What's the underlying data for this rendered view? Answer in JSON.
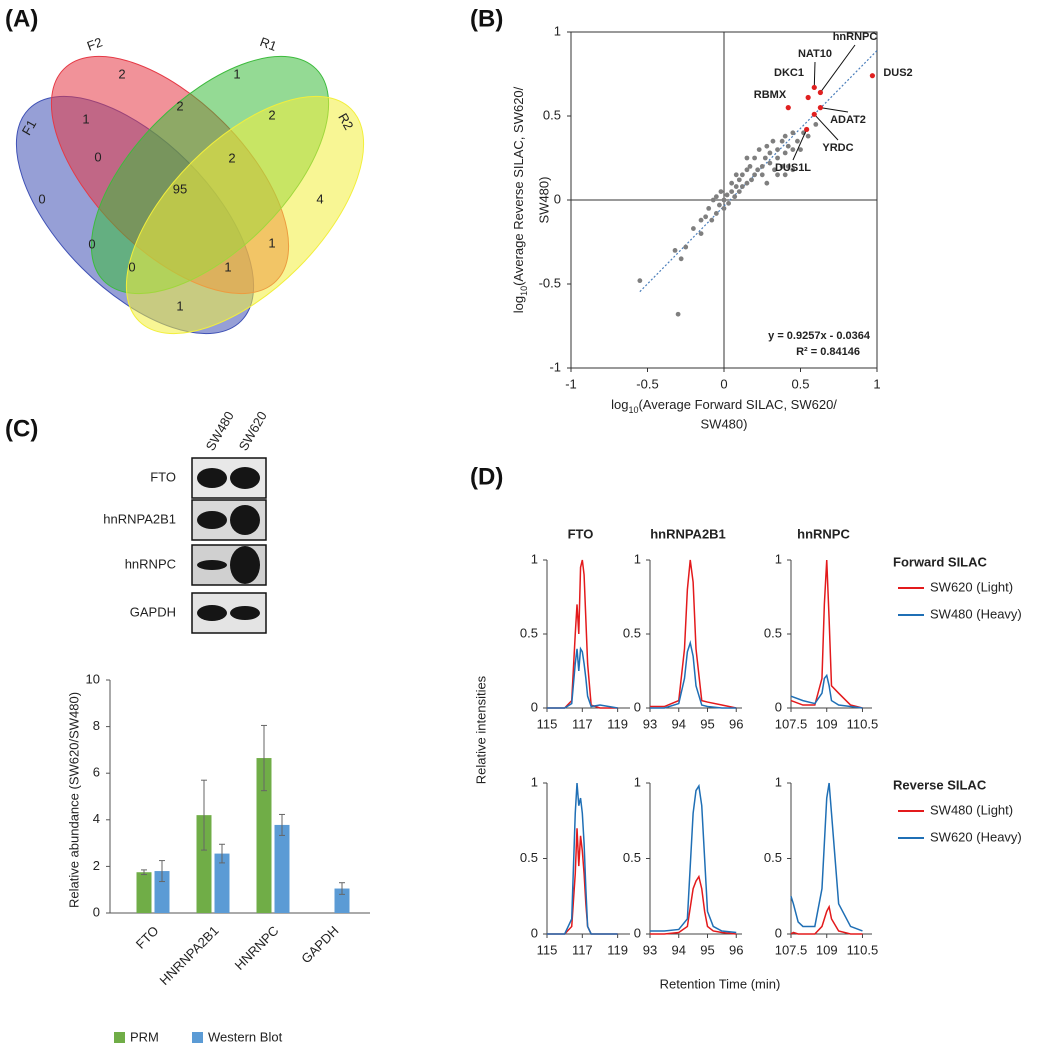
{
  "chart_data": [
    {
      "type": "venn",
      "panel": "(A)",
      "sets": [
        {
          "name": "F1",
          "color": "#3f51b5"
        },
        {
          "name": "F2",
          "color": "#e53945"
        },
        {
          "name": "R1",
          "color": "#3dbb3d"
        },
        {
          "name": "R2",
          "color": "#f2ef3c"
        }
      ],
      "regions": [
        0,
        2,
        1,
        4,
        1,
        2,
        2,
        0,
        2,
        95,
        0,
        1,
        0,
        1,
        1
      ]
    },
    {
      "type": "scatter",
      "panel": "(B)",
      "xlabel": {
        "base": "log",
        "sub": "10",
        "rest": "(Average Forward SILAC, SW620/",
        "line2": "SW480)"
      },
      "ylabel": {
        "base": "log",
        "sub": "10",
        "rest": "(Average Reverse SILAC, SW620/",
        "line2": "SW480)"
      },
      "xlim": [
        -1,
        1
      ],
      "xticks": [
        -1,
        -0.5,
        0,
        0.5,
        1
      ],
      "ylim": [
        -1,
        1
      ],
      "yticks": [
        -1,
        -0.5,
        0,
        0.5,
        1
      ],
      "points": {
        "color": "#7f7f7f",
        "x": [
          -0.55,
          -0.3,
          -0.32,
          -0.28,
          -0.25,
          -0.2,
          -0.15,
          -0.12,
          -0.1,
          -0.08,
          -0.05,
          -0.05,
          -0.03,
          -0.02,
          0,
          0,
          0.02,
          0.03,
          0.05,
          0.05,
          0.07,
          0.08,
          0.1,
          0.1,
          0.12,
          0.12,
          0.15,
          0.15,
          0.17,
          0.18,
          0.2,
          0.2,
          0.22,
          0.23,
          0.25,
          0.25,
          0.27,
          0.28,
          0.3,
          0.3,
          0.32,
          0.33,
          0.35,
          0.35,
          0.38,
          0.4,
          0.4,
          0.42,
          0.42,
          0.45,
          0.45,
          0.48,
          0.5,
          0.52,
          0.38,
          0.4,
          0.15,
          0.08,
          -0.15,
          -0.07,
          0.28,
          0.35,
          0.45,
          0.6,
          0.55
        ],
        "y": [
          -0.48,
          -0.68,
          -0.3,
          -0.35,
          -0.28,
          -0.17,
          -0.2,
          -0.1,
          -0.05,
          -0.12,
          -0.08,
          0.02,
          -0.03,
          0.05,
          0,
          -0.05,
          0.03,
          -0.02,
          0.05,
          0.1,
          0.02,
          0.08,
          0.05,
          0.12,
          0.15,
          0.08,
          0.1,
          0.18,
          0.2,
          0.12,
          0.15,
          0.25,
          0.18,
          0.3,
          0.2,
          0.15,
          0.25,
          0.32,
          0.22,
          0.28,
          0.35,
          0.18,
          0.3,
          0.25,
          0.35,
          0.28,
          0.38,
          0.2,
          0.32,
          0.3,
          0.4,
          0.35,
          0.3,
          0.4,
          0.2,
          0.15,
          0.25,
          0.15,
          -0.12,
          0,
          0.1,
          0.15,
          0.18,
          0.45,
          0.38
        ]
      },
      "highlighted": {
        "color": "#e02020",
        "labels": [
          "hnRNPC",
          "NAT10",
          "DKC1",
          "RBMX",
          "ADAT2",
          "YRDC",
          "DUS1L",
          "DUS2"
        ],
        "x": [
          0.63,
          0.59,
          0.55,
          0.42,
          0.63,
          0.59,
          0.54,
          0.97
        ],
        "y": [
          0.64,
          0.67,
          0.61,
          0.55,
          0.55,
          0.51,
          0.42,
          0.74
        ]
      },
      "trendline": {
        "slope": 0.9257,
        "intercept": -0.0364,
        "color": "#4a7ebb"
      },
      "equation": "y = 0.9257x - 0.0364",
      "r_squared": "R² = 0.84146"
    },
    {
      "type": "blot",
      "panel": "(C)",
      "lanes": [
        "SW480",
        "SW620"
      ],
      "rows": [
        "FTO",
        "hnRNPA2B1",
        "hnRNPC",
        "GAPDH"
      ]
    },
    {
      "type": "bar",
      "ylabel": "Relative abundance (SW620/SW480)",
      "categories": [
        "FTO",
        "HNRNPA2B1",
        "HNRNPC",
        "GAPDH"
      ],
      "series": [
        {
          "name": "PRM",
          "color": "#70ad47",
          "values": [
            1.75,
            4.2,
            6.65,
            null
          ],
          "errors": [
            0.1,
            1.5,
            1.4,
            null
          ]
        },
        {
          "name": "Western Blot",
          "color": "#5b9bd5",
          "values": [
            1.8,
            2.55,
            3.78,
            1.05
          ],
          "errors": [
            0.45,
            0.4,
            0.45,
            0.25
          ]
        }
      ],
      "ylim": [
        0,
        10
      ],
      "yticks": [
        0,
        2,
        4,
        6,
        8,
        10
      ]
    },
    {
      "type": "line-grid",
      "panel": "(D)",
      "ylabel": "Relative intensities",
      "xlabel": "Retention Time (min)",
      "ylim": [
        0,
        1
      ],
      "yticks": [
        0,
        0.5,
        1
      ],
      "columns": [
        {
          "title": "FTO",
          "xlim": [
            115,
            119.7
          ],
          "xticks": [
            115,
            117,
            119
          ]
        },
        {
          "title": "hnRNPA2B1",
          "xlim": [
            93,
            96.2
          ],
          "xticks": [
            93,
            94,
            95,
            96
          ]
        },
        {
          "title": "hnRNPC",
          "xlim": [
            107.5,
            110.9
          ],
          "xticks": [
            107.5,
            109,
            110.5
          ]
        }
      ],
      "rows": [
        {
          "legend_title": "Forward SILAC",
          "series": [
            {
              "name": "SW620 (Light)",
              "color": "#e31a1c"
            },
            {
              "name": "SW480 (Heavy)",
              "color": "#1f6fb5"
            }
          ],
          "panels": [
            {
              "x": [
                115,
                115.5,
                116,
                116.4,
                116.6,
                116.7,
                116.8,
                116.9,
                117,
                117.1,
                117.2,
                117.3,
                117.5,
                118,
                119
              ],
              "values": [
                [
                  0,
                  0,
                  0,
                  0.05,
                  0.5,
                  0.7,
                  0.5,
                  0.95,
                  1,
                  0.9,
                  0.6,
                  0.3,
                  0.02,
                  0,
                  0
                ],
                [
                  0,
                  0,
                  0,
                  0.03,
                  0.3,
                  0.4,
                  0.25,
                  0.4,
                  0.38,
                  0.3,
                  0.2,
                  0.08,
                  0.01,
                  0.02,
                  0
                ]
              ]
            },
            {
              "x": [
                93,
                93.5,
                94,
                94.2,
                94.3,
                94.4,
                94.5,
                94.6,
                94.8,
                95,
                95.5,
                96
              ],
              "values": [
                [
                  0.01,
                  0.01,
                  0.05,
                  0.4,
                  0.8,
                  1,
                  0.85,
                  0.4,
                  0.05,
                  0.04,
                  0.02,
                  0
                ],
                [
                  0,
                  0,
                  0.03,
                  0.2,
                  0.38,
                  0.44,
                  0.35,
                  0.15,
                  0.02,
                  0.01,
                  0,
                  0
                ]
              ]
            },
            {
              "x": [
                107.5,
                108,
                108.5,
                108.8,
                108.9,
                109,
                109.1,
                109.2,
                109.5,
                110,
                110.5
              ],
              "values": [
                [
                  0.05,
                  0.02,
                  0.02,
                  0.2,
                  0.7,
                  1,
                  0.6,
                  0.15,
                  0.1,
                  0.02,
                  0
                ],
                [
                  0.08,
                  0.05,
                  0.03,
                  0.1,
                  0.2,
                  0.22,
                  0.15,
                  0.05,
                  0.02,
                  0.01,
                  0
                ]
              ]
            }
          ]
        },
        {
          "legend_title": "Reverse SILAC",
          "series": [
            {
              "name": "SW480 (Light)",
              "color": "#e31a1c"
            },
            {
              "name": "SW620 (Heavy)",
              "color": "#1f6fb5"
            }
          ],
          "panels": [
            {
              "x": [
                115,
                115.5,
                116,
                116.4,
                116.6,
                116.7,
                116.8,
                116.9,
                117,
                117.1,
                117.2,
                117.3,
                117.5,
                118,
                119
              ],
              "values": [
                [
                  0,
                  0,
                  0,
                  0.05,
                  0.4,
                  0.7,
                  0.45,
                  0.65,
                  0.55,
                  0.4,
                  0.2,
                  0.05,
                  0,
                  0,
                  0
                ],
                [
                  0,
                  0,
                  0,
                  0.1,
                  0.8,
                  1,
                  0.85,
                  0.9,
                  0.8,
                  0.6,
                  0.3,
                  0.05,
                  0,
                  0,
                  0
                ]
              ]
            },
            {
              "x": [
                93,
                93.5,
                94,
                94.3,
                94.5,
                94.6,
                94.7,
                94.8,
                94.9,
                95,
                95.2,
                95.5,
                96
              ],
              "values": [
                [
                  0,
                  0,
                  0.01,
                  0.05,
                  0.3,
                  0.35,
                  0.38,
                  0.3,
                  0.15,
                  0.05,
                  0.02,
                  0.01,
                  0
                ],
                [
                  0.02,
                  0.02,
                  0.03,
                  0.1,
                  0.8,
                  0.95,
                  0.98,
                  0.85,
                  0.5,
                  0.15,
                  0.05,
                  0.02,
                  0.01
                ]
              ]
            },
            {
              "x": [
                107.5,
                107.6,
                107.8,
                108,
                108.5,
                108.8,
                109,
                109.1,
                109.2,
                109.5,
                110,
                110.5
              ],
              "values": [
                [
                  0,
                  0.01,
                  0,
                  0,
                  0,
                  0.05,
                  0.15,
                  0.18,
                  0.1,
                  0.02,
                  0,
                  0
                ],
                [
                  0.25,
                  0.2,
                  0.08,
                  0.05,
                  0.05,
                  0.3,
                  0.9,
                  1,
                  0.8,
                  0.2,
                  0.05,
                  0.02
                ]
              ]
            }
          ]
        }
      ]
    }
  ]
}
